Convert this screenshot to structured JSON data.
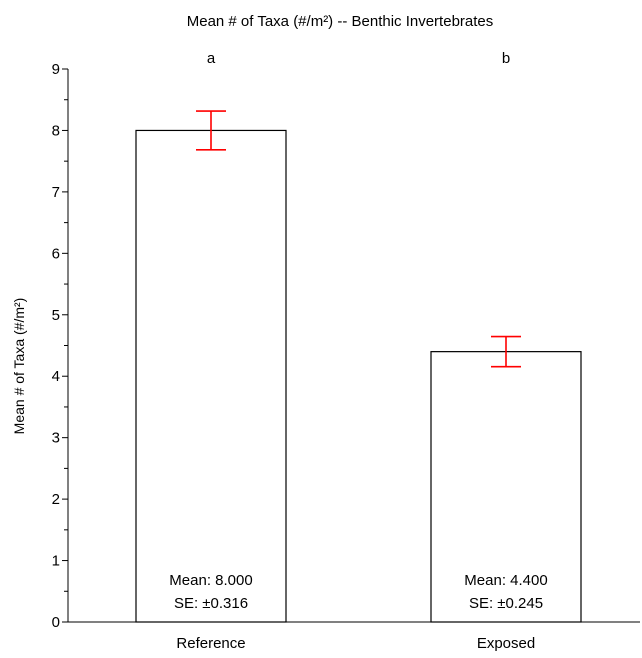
{
  "chart_data": {
    "type": "bar",
    "title": "Mean # of Taxa (#/m²) -- Benthic Invertebrates",
    "ylabel": "Mean # of Taxa (#/m²)",
    "xlabel": "",
    "ylim": [
      0,
      9
    ],
    "yticks": [
      0,
      1,
      2,
      3,
      4,
      5,
      6,
      7,
      8,
      9
    ],
    "minor_tick_step": 0.5,
    "categories": [
      "Reference",
      "Exposed"
    ],
    "values": [
      8.0,
      4.4
    ],
    "se": [
      0.316,
      0.245
    ],
    "significance_letters": [
      "a",
      "b"
    ],
    "bar_annotations": [
      {
        "mean": "Mean: 8.000",
        "se": "SE: ±0.316"
      },
      {
        "mean": "Mean: 4.400",
        "se": "SE: ±0.245"
      }
    ],
    "grid": false,
    "colors": {
      "bar_fill": "#ffffff",
      "bar_stroke": "#000000",
      "error_bar": "#ff0000",
      "axis": "#000000"
    }
  }
}
